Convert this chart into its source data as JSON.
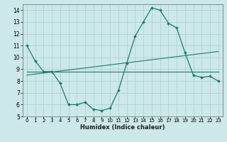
{
  "xlabel": "Humidex (Indice chaleur)",
  "line1_x": [
    0,
    1,
    2,
    3,
    4,
    5,
    6,
    7,
    8,
    9,
    10,
    11,
    12,
    13,
    14,
    15,
    16,
    17,
    18,
    19,
    20,
    21,
    22,
    23
  ],
  "line1_y": [
    11.0,
    9.7,
    8.8,
    8.8,
    7.8,
    6.0,
    6.0,
    6.2,
    5.6,
    5.5,
    5.7,
    7.2,
    9.5,
    11.8,
    13.0,
    14.2,
    14.0,
    12.9,
    12.5,
    10.4,
    8.5,
    8.3,
    8.4,
    8.0
  ],
  "line2_x": [
    0,
    23
  ],
  "line2_y": [
    8.8,
    8.8
  ],
  "line3_x": [
    0,
    23
  ],
  "line3_y": [
    8.5,
    10.5
  ],
  "line_color": "#1e7a70",
  "bg_color": "#cce8e8",
  "grid_color": "#aad0d0",
  "ylim": [
    5,
    14.5
  ],
  "xlim": [
    -0.5,
    23.5
  ],
  "yticks": [
    5,
    6,
    7,
    8,
    9,
    10,
    11,
    12,
    13,
    14
  ],
  "xticks": [
    0,
    1,
    2,
    3,
    4,
    5,
    6,
    7,
    8,
    9,
    10,
    11,
    12,
    13,
    14,
    15,
    16,
    17,
    18,
    19,
    20,
    21,
    22,
    23
  ],
  "xlabel_fontsize": 6.0,
  "tick_fontsize": 5.0,
  "ytick_fontsize": 5.5
}
